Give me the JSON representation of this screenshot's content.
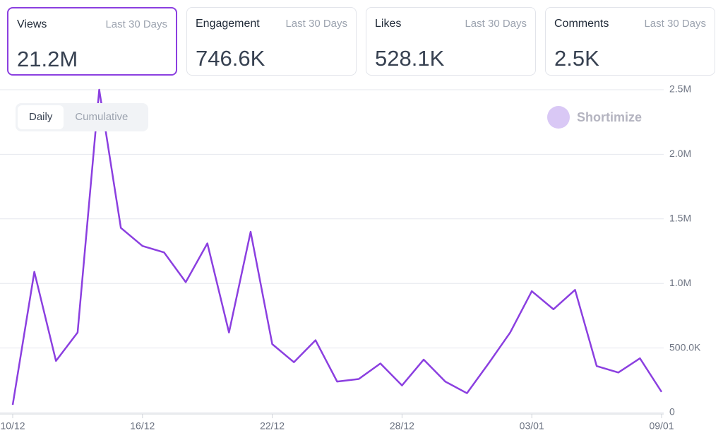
{
  "cards": [
    {
      "title": "Views",
      "period": "Last 30 Days",
      "value": "21.2M"
    },
    {
      "title": "Engagement",
      "period": "Last 30 Days",
      "value": "746.6K"
    },
    {
      "title": "Likes",
      "period": "Last 30 Days",
      "value": "528.1K"
    },
    {
      "title": "Comments",
      "period": "Last 30 Days",
      "value": "2.5K"
    }
  ],
  "toggle": [
    "Daily",
    "Cumulative"
  ],
  "brand": "Shortimize",
  "chart_data": {
    "type": "line",
    "color": "#8b3fe0",
    "grid": true,
    "categories": [
      "10/12",
      null,
      null,
      null,
      null,
      null,
      "16/12",
      null,
      null,
      null,
      null,
      null,
      "22/12",
      null,
      null,
      null,
      null,
      null,
      "28/12",
      null,
      null,
      null,
      null,
      null,
      "03/01",
      null,
      null,
      null,
      null,
      null,
      "09/01"
    ],
    "values": [
      60000,
      1090000,
      400000,
      620000,
      2500000,
      1430000,
      1290000,
      1240000,
      1010000,
      1310000,
      620000,
      1400000,
      530000,
      390000,
      560000,
      240000,
      260000,
      380000,
      210000,
      410000,
      240000,
      150000,
      380000,
      620000,
      940000,
      800000,
      950000,
      360000,
      310000,
      420000,
      160000
    ],
    "ylim": [
      0,
      2500000
    ],
    "yticks": [
      0,
      {
        "value": 500000,
        "label": "500.0K"
      },
      {
        "value": 1000000,
        "label": "1.0M"
      },
      {
        "value": 1500000,
        "label": "1.5M"
      },
      {
        "value": 2000000,
        "label": "2.0M"
      },
      {
        "value": 2500000,
        "label": "2.5M"
      }
    ]
  }
}
